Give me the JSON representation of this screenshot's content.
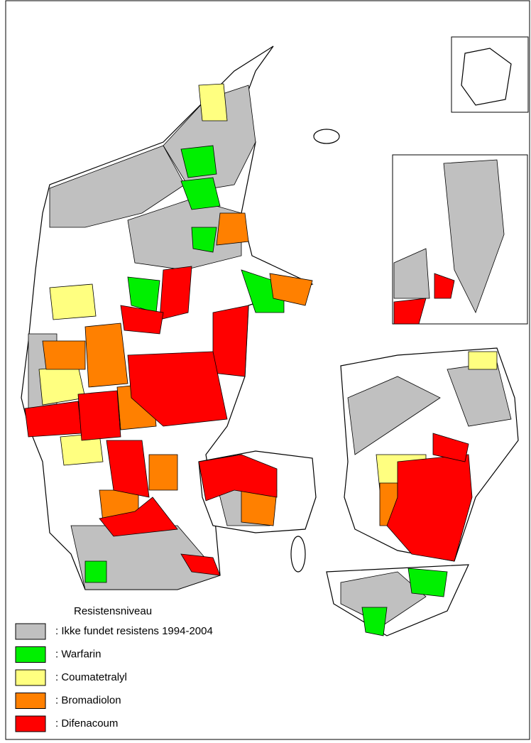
{
  "legend": {
    "title": "Resistensniveau",
    "items": [
      {
        "label": ": Ikke fundet resistens 1994-2004",
        "color": "#c0c0c0"
      },
      {
        "label": ": Warfarin",
        "color": "#00f000"
      },
      {
        "label": ": Coumatetralyl",
        "color": "#ffff80"
      },
      {
        "label": ": Bromadiolon",
        "color": "#ff8000"
      },
      {
        "label": ": Difenacoum",
        "color": "#ff0000"
      }
    ]
  }
}
